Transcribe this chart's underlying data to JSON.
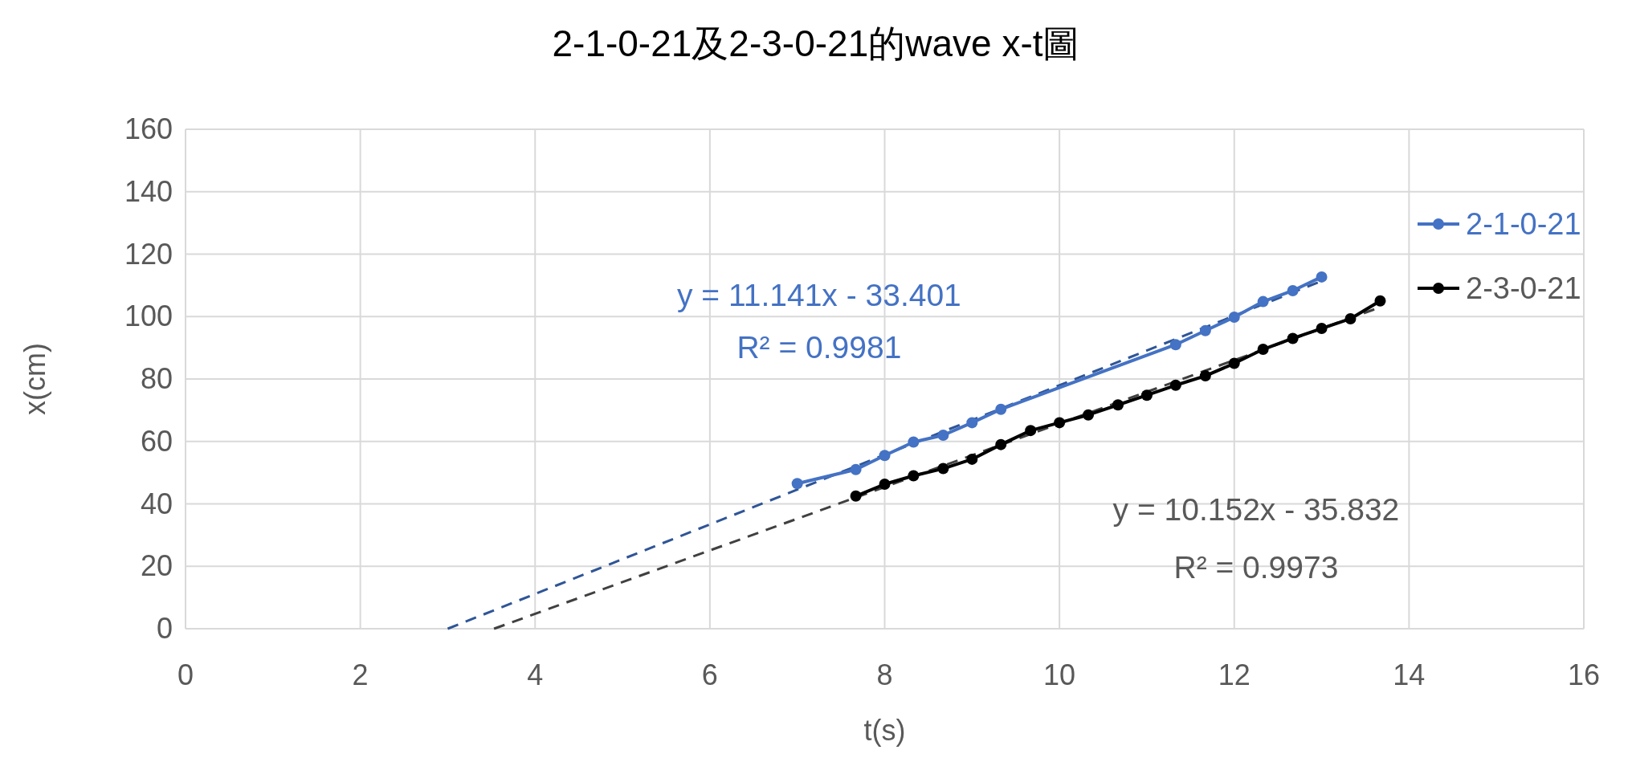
{
  "chart_data": {
    "type": "line",
    "title": "2-1-0-21及2-3-0-21的wave x-t圖",
    "xlabel": "t(s)",
    "ylabel": "x(cm)",
    "xlim": [
      0,
      16
    ],
    "xticks": [
      0,
      2,
      4,
      6,
      8,
      10,
      12,
      14,
      16
    ],
    "ylim": [
      0,
      160
    ],
    "yticks": [
      0,
      20,
      40,
      60,
      80,
      100,
      120,
      140,
      160
    ],
    "grid": true,
    "legend": "right",
    "series": [
      {
        "name": "2-1-0-21",
        "color": "#4472c4",
        "marker": "circle",
        "line_style": "solid",
        "x": [
          7.0,
          7.67,
          8.0,
          8.33,
          8.67,
          9.0,
          9.33,
          11.33,
          11.67,
          12.0,
          12.33,
          12.67,
          13.0
        ],
        "values": [
          46.5,
          51,
          55.5,
          59.8,
          62,
          66,
          70.3,
          91,
          95.5,
          99.8,
          104.8,
          108.3,
          112.7
        ]
      },
      {
        "name": "2-3-0-21",
        "color": "#000000",
        "marker": "circle",
        "line_style": "solid",
        "x": [
          7.67,
          8.0,
          8.33,
          8.67,
          9.0,
          9.33,
          9.67,
          10.0,
          10.33,
          10.67,
          11.0,
          11.33,
          11.67,
          12.0,
          12.33,
          12.67,
          13.0,
          13.33,
          13.67
        ],
        "values": [
          42.5,
          46.3,
          49,
          51.3,
          54.3,
          59,
          63.5,
          66,
          68.5,
          71.7,
          74.8,
          78,
          81,
          85,
          89.5,
          93,
          96.2,
          99.3,
          105
        ]
      },
      {
        "color": "#2f5597",
        "marker": "none",
        "line_style": "dashed",
        "x": [
          3.0,
          13.0
        ],
        "values": [
          0,
          111.4
        ]
      },
      {
        "color": "#404040",
        "marker": "none",
        "line_style": "dashed",
        "x": [
          3.53,
          13.67
        ],
        "values": [
          0,
          103
        ]
      }
    ],
    "annotations": [
      "y = 11.141x - 33.401",
      "R² = 0.9981",
      "y = 10.152x - 35.832",
      "R² = 0.9973"
    ]
  }
}
